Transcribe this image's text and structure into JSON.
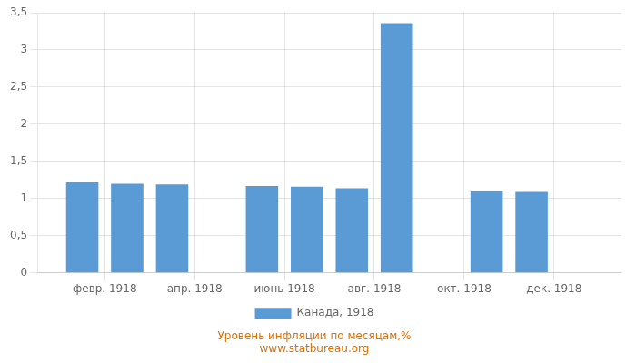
{
  "chart_data": {
    "type": "bar",
    "x": [
      1,
      2,
      3,
      5,
      6,
      7,
      8,
      10,
      11
    ],
    "series": [
      {
        "name": "Канада, 1918",
        "color": "#5b9bd5",
        "values": [
          1.22,
          1.2,
          1.19,
          1.17,
          1.16,
          1.14,
          3.36,
          1.1,
          1.09
        ]
      }
    ],
    "xlim": [
      0,
      13
    ],
    "xticks": [
      {
        "value": 1.5,
        "label": "февр. 1918"
      },
      {
        "value": 3.5,
        "label": "апр. 1918"
      },
      {
        "value": 5.5,
        "label": "июнь 1918"
      },
      {
        "value": 7.5,
        "label": "авг. 1918"
      },
      {
        "value": 9.5,
        "label": "окт. 1918"
      },
      {
        "value": 11.5,
        "label": "дек. 1918"
      }
    ],
    "ylim": [
      0,
      3.5
    ],
    "yticks": [
      0,
      {
        "value": 0.5,
        "label": "0,5"
      },
      1,
      {
        "value": 1.5,
        "label": "1,5"
      },
      2,
      {
        "value": 2.5,
        "label": "2,5"
      },
      3,
      {
        "value": 3.5,
        "label": "3,5"
      }
    ],
    "grid": true,
    "legend": "bottom",
    "annotations": [
      "Уровень инфляции по месяцам,%",
      "www.statbureau.org"
    ]
  }
}
